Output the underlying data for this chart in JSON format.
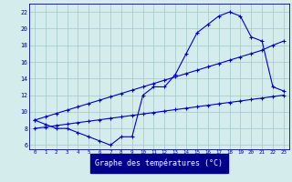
{
  "hours": [
    0,
    1,
    2,
    3,
    4,
    5,
    6,
    7,
    8,
    9,
    10,
    11,
    12,
    13,
    14,
    15,
    16,
    17,
    18,
    19,
    20,
    21,
    22,
    23
  ],
  "temp_curve": [
    9,
    8.5,
    8,
    8,
    7.5,
    7,
    6.5,
    6,
    7,
    7,
    12,
    13,
    13,
    14.5,
    17,
    19.5,
    20.5,
    21.5,
    22,
    21.5,
    19,
    18.5,
    13,
    12.5
  ],
  "line_upper": [
    9,
    9.4,
    9.8,
    10.2,
    10.6,
    11.0,
    11.4,
    11.8,
    12.2,
    12.6,
    13.0,
    13.4,
    13.8,
    14.2,
    14.6,
    15.0,
    15.4,
    15.8,
    16.2,
    16.6,
    17.0,
    17.4,
    18.0,
    18.5
  ],
  "line_lower": [
    8,
    8.17,
    8.35,
    8.52,
    8.7,
    8.87,
    9.04,
    9.22,
    9.39,
    9.57,
    9.74,
    9.91,
    10.09,
    10.26,
    10.43,
    10.61,
    10.78,
    10.96,
    11.13,
    11.3,
    11.48,
    11.65,
    11.83,
    12.0
  ],
  "line_color": "#0000cd",
  "marker": "+",
  "bg_color": "#d4ecec",
  "grid_color": "#a0c8c8",
  "xlabel": "Graphe des températures (°C)",
  "ylim": [
    5.5,
    23
  ],
  "xlim": [
    -0.5,
    23.5
  ],
  "yticks": [
    6,
    8,
    10,
    12,
    14,
    16,
    18,
    20,
    22
  ],
  "xticks": [
    0,
    1,
    2,
    3,
    4,
    5,
    6,
    7,
    8,
    9,
    10,
    11,
    12,
    13,
    14,
    15,
    16,
    17,
    18,
    19,
    20,
    21,
    22,
    23
  ]
}
